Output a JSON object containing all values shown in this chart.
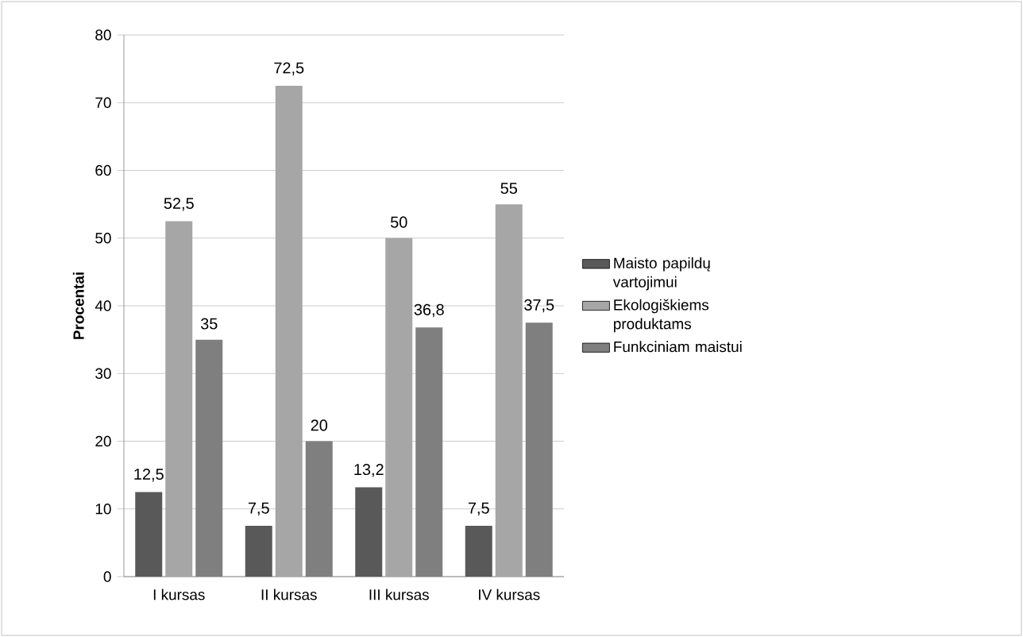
{
  "chart_data": {
    "type": "bar",
    "ylabel": "Procentai",
    "categories": [
      "I kursas",
      "II kursas",
      "III kursas",
      "IV kursas"
    ],
    "series": [
      {
        "name": "Maisto papildų vartojimui",
        "color": "#595959",
        "values": [
          12.5,
          7.5,
          13.2,
          7.5
        ],
        "value_labels": [
          "12,5",
          "7,5",
          "13,2",
          "7,5"
        ]
      },
      {
        "name": "Ekologiškiems produktams",
        "color": "#a6a6a6",
        "values": [
          52.5,
          72.5,
          50,
          55
        ],
        "value_labels": [
          "52,5",
          "72,5",
          "50",
          "55"
        ]
      },
      {
        "name": "Funkciniam maistui",
        "color": "#7f7f7f",
        "values": [
          35,
          20,
          36.8,
          37.5
        ],
        "value_labels": [
          "35",
          "20",
          "36,8",
          "37,5"
        ]
      }
    ],
    "ylim": [
      0,
      80
    ],
    "yticks": [
      0,
      10,
      20,
      30,
      40,
      50,
      60,
      70,
      80
    ],
    "grid": "y",
    "legend": "right"
  }
}
